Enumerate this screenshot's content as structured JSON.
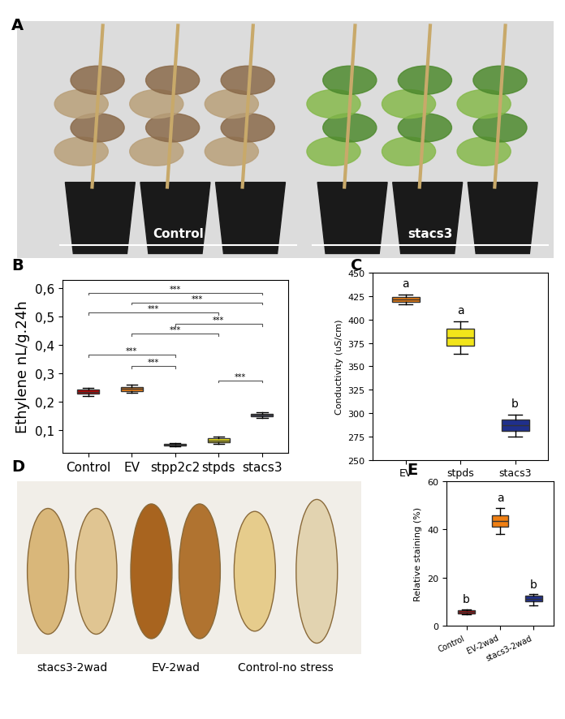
{
  "chart_data": [
    {
      "panel": "B",
      "type": "box",
      "ylabel": "Ethylene nL/g.24h",
      "categories": [
        "Control",
        "EV",
        "stpp2c2",
        "stpds",
        "stacs3"
      ],
      "colors": [
        "#c00000",
        "#f07f12",
        "#1f2f8c",
        "#f2e51a",
        "#3a3f5c"
      ],
      "boxes": [
        {
          "whislo": 0.22,
          "q1": 0.228,
          "med": 0.235,
          "q3": 0.243,
          "whishi": 0.25
        },
        {
          "whislo": 0.232,
          "q1": 0.238,
          "med": 0.245,
          "q3": 0.252,
          "whishi": 0.26
        },
        {
          "whislo": 0.043,
          "q1": 0.046,
          "med": 0.049,
          "q3": 0.052,
          "whishi": 0.055
        },
        {
          "whislo": 0.05,
          "q1": 0.057,
          "med": 0.063,
          "q3": 0.07,
          "whishi": 0.077
        },
        {
          "whislo": 0.142,
          "q1": 0.148,
          "med": 0.153,
          "q3": 0.158,
          "whishi": 0.163
        }
      ],
      "ylim": [
        0.02,
        0.63
      ],
      "yticks": [
        {
          "value": 0.1,
          "label": "0,1"
        },
        {
          "value": 0.2,
          "label": "0,2"
        },
        {
          "value": 0.3,
          "label": "0,3"
        },
        {
          "value": 0.4,
          "label": "0,4"
        },
        {
          "value": 0.5,
          "label": "0,5"
        },
        {
          "value": 0.6,
          "label": "0,6"
        }
      ],
      "comparisons": [
        {
          "pair": [
            "Control",
            "stacs3"
          ],
          "y": 0.585,
          "label": "***"
        },
        {
          "pair": [
            "EV",
            "stacs3"
          ],
          "y": 0.55,
          "label": "***"
        },
        {
          "pair": [
            "Control",
            "stpds"
          ],
          "y": 0.515,
          "label": "***"
        },
        {
          "pair": [
            "stpp2c2",
            "stacs3"
          ],
          "y": 0.475,
          "label": "***"
        },
        {
          "pair": [
            "EV",
            "stpds"
          ],
          "y": 0.44,
          "label": "***"
        },
        {
          "pair": [
            "Control",
            "stpp2c2"
          ],
          "y": 0.365,
          "label": "***"
        },
        {
          "pair": [
            "EV",
            "stpp2c2"
          ],
          "y": 0.325,
          "label": "***"
        },
        {
          "pair": [
            "stpds",
            "stacs3"
          ],
          "y": 0.275,
          "label": "***"
        }
      ]
    },
    {
      "panel": "C",
      "type": "box",
      "ylabel": "Conductivity (uS/cm)",
      "categories": [
        "EV",
        "stpds",
        "stacs3"
      ],
      "colors": [
        "#f07f12",
        "#f2e51a",
        "#1f2f8c"
      ],
      "boxes": [
        {
          "whislo": 416,
          "q1": 419,
          "med": 421,
          "q3": 424,
          "whishi": 427
        },
        {
          "whislo": 363,
          "q1": 372,
          "med": 381,
          "q3": 390,
          "whishi": 398
        },
        {
          "whislo": 275,
          "q1": 281,
          "med": 287,
          "q3": 293,
          "whishi": 298
        }
      ],
      "letters": [
        "a",
        "a",
        "b"
      ],
      "ylim": [
        250,
        450
      ],
      "yticks": [
        250,
        275,
        300,
        325,
        350,
        375,
        400,
        425,
        450
      ]
    },
    {
      "panel": "E",
      "type": "box",
      "ylabel": "Relative staining (%)",
      "categories": [
        "Control",
        "EV-2wad",
        "stacs3-2wad"
      ],
      "colors": [
        "#c00000",
        "#f07f12",
        "#1f2f8c"
      ],
      "boxes": [
        {
          "whislo": 4.5,
          "q1": 5,
          "med": 5.5,
          "q3": 6.2,
          "whishi": 6.8
        },
        {
          "whislo": 38,
          "q1": 41,
          "med": 43.5,
          "q3": 46,
          "whishi": 49
        },
        {
          "whislo": 8.5,
          "q1": 10,
          "med": 11,
          "q3": 12.3,
          "whishi": 13
        }
      ],
      "letters": [
        "b",
        "a",
        "b"
      ],
      "ylim": [
        0,
        60
      ],
      "yticks": [
        0,
        20,
        40,
        60
      ]
    }
  ],
  "photos": [
    {
      "panel": "A",
      "labels": [
        "Control",
        "stacs3"
      ]
    },
    {
      "panel": "D",
      "labels": [
        "stacs3-2wad",
        "EV-2wad",
        "Control-no stress"
      ]
    }
  ]
}
